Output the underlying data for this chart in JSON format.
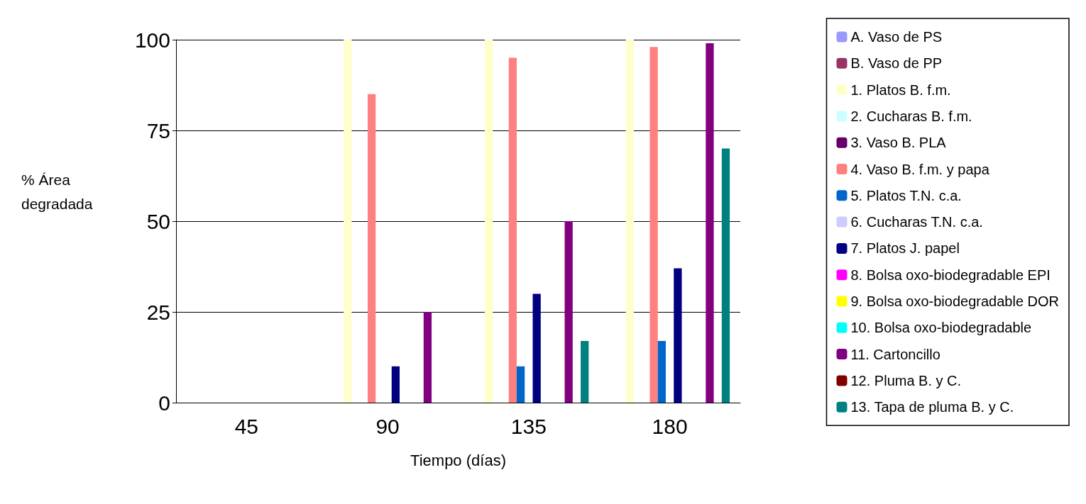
{
  "chart_data": {
    "type": "bar",
    "xlabel": "Tiempo (días)",
    "ylabel": "% Área\ndegradada",
    "categories": [
      "45",
      "90",
      "135",
      "180"
    ],
    "ylim": [
      0,
      100
    ],
    "yticks": [
      0,
      25,
      50,
      75,
      100
    ],
    "grid": "y",
    "legend": "right",
    "series": [
      {
        "name": "A. Vaso de PS",
        "color": "#9999ff",
        "values": [
          0,
          0,
          0,
          0
        ]
      },
      {
        "name": "B. Vaso de PP",
        "color": "#993366",
        "values": [
          0,
          0,
          0,
          0
        ]
      },
      {
        "name": "1. Platos B. f.m.",
        "color": "#ffffcc",
        "values": [
          0,
          100,
          100,
          100
        ]
      },
      {
        "name": "2. Cucharas B. f.m.",
        "color": "#ccffff",
        "values": [
          0,
          0,
          0,
          0
        ]
      },
      {
        "name": "3. Vaso B. PLA",
        "color": "#660066",
        "values": [
          0,
          0,
          0,
          0
        ]
      },
      {
        "name": "4. Vaso B. f.m. y papa",
        "color": "#ff8080",
        "values": [
          0,
          85,
          95,
          98
        ]
      },
      {
        "name": "5. Platos T.N. c.a.",
        "color": "#0066cc",
        "values": [
          0,
          0,
          10,
          17
        ]
      },
      {
        "name": "6. Cucharas T.N. c.a.",
        "color": "#ccccff",
        "values": [
          0,
          0,
          0,
          0
        ]
      },
      {
        "name": "7. Platos J. papel",
        "color": "#000080",
        "values": [
          0,
          10,
          30,
          37
        ]
      },
      {
        "name": "8. Bolsa oxo-biodegradable EPI",
        "color": "#ff00ff",
        "values": [
          0,
          0,
          0,
          0
        ]
      },
      {
        "name": "9. Bolsa oxo-biodegradable DOR",
        "color": "#ffff00",
        "values": [
          0,
          0,
          0,
          0
        ]
      },
      {
        "name": "10. Bolsa oxo-biodegradable",
        "color": "#00ffff",
        "values": [
          0,
          0,
          0,
          0
        ]
      },
      {
        "name": "11. Cartoncillo",
        "color": "#800080",
        "values": [
          0,
          25,
          50,
          99
        ]
      },
      {
        "name": "12. Pluma B. y C.",
        "color": "#800000",
        "values": [
          0,
          0,
          0,
          0
        ]
      },
      {
        "name": "13. Tapa de pluma B. y C.",
        "color": "#008080",
        "values": [
          0,
          0,
          17,
          70
        ]
      }
    ]
  }
}
